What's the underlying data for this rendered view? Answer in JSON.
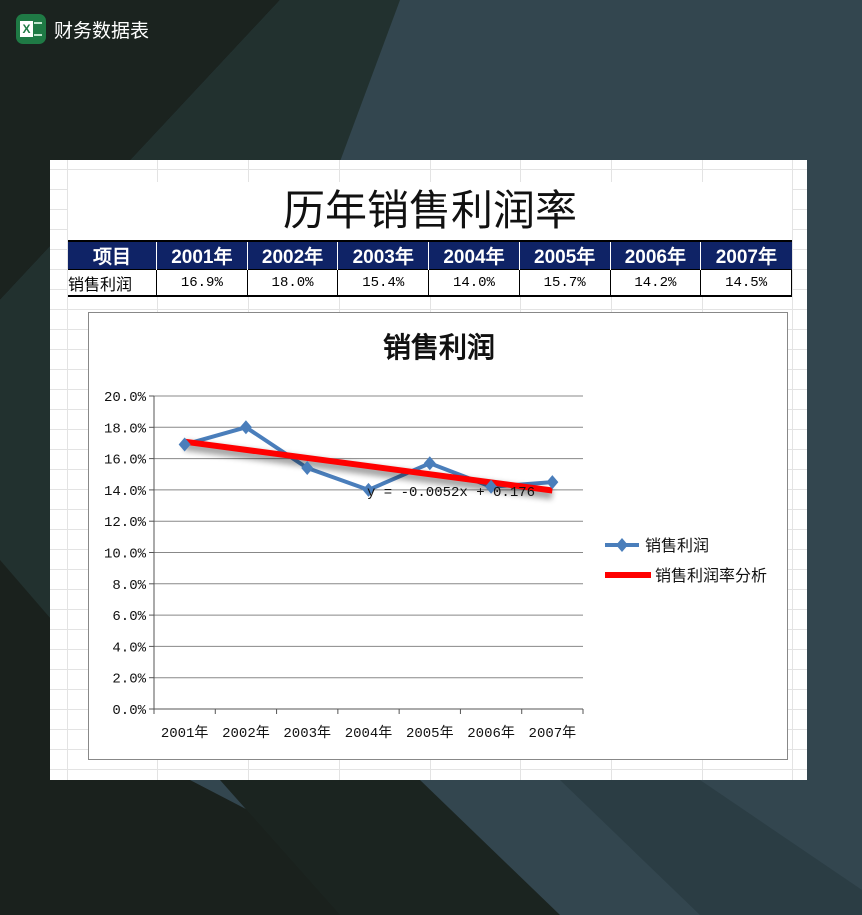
{
  "app": {
    "title": "财务数据表",
    "icon": "excel-icon"
  },
  "sheet": {
    "title": "历年销售利润率",
    "header": [
      "项目",
      "2001年",
      "2002年",
      "2003年",
      "2004年",
      "2005年",
      "2006年",
      "2007年"
    ],
    "row": {
      "label": "销售利润",
      "values": [
        "16.9%",
        "18.0%",
        "15.4%",
        "14.0%",
        "15.7%",
        "14.2%",
        "14.5%"
      ]
    }
  },
  "chart_data": {
    "type": "line",
    "title": "销售利润",
    "categories": [
      "2001年",
      "2002年",
      "2003年",
      "2004年",
      "2005年",
      "2006年",
      "2007年"
    ],
    "series": [
      {
        "name": "销售利润",
        "values": [
          0.169,
          0.18,
          0.154,
          0.14,
          0.157,
          0.142,
          0.145
        ],
        "color": "#4a7ebb",
        "marker": "diamond"
      }
    ],
    "trendline": {
      "name": "销售利润率分析",
      "type": "linear",
      "slope": -0.0052,
      "intercept": 0.176,
      "equation": "y = -0.0052x + 0.176",
      "color": "#ff0000"
    },
    "ylim": [
      0,
      0.2
    ],
    "yticks": [
      "0.0%",
      "2.0%",
      "4.0%",
      "6.0%",
      "8.0%",
      "10.0%",
      "12.0%",
      "14.0%",
      "16.0%",
      "18.0%",
      "20.0%"
    ],
    "grid": true,
    "legend": "right"
  }
}
